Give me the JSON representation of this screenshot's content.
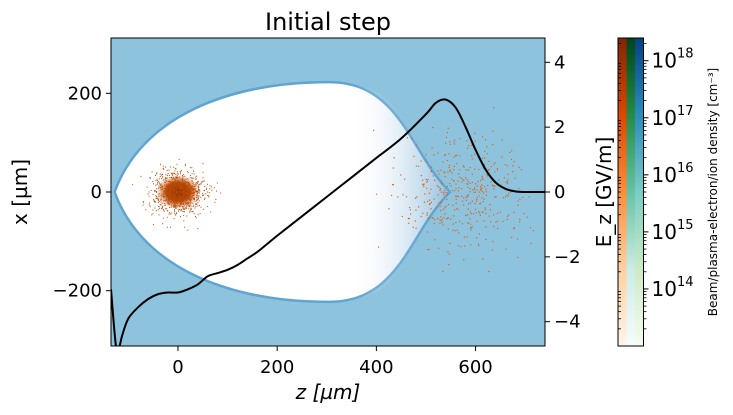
{
  "chart_data": {
    "type": "heatmap",
    "title": "Initial step",
    "xlabel": "z [µm]",
    "ylabel": "x [µm]",
    "y2label": "E_z [GV/m]",
    "xlim": [
      -135,
      740
    ],
    "ylim": [
      -312,
      312
    ],
    "y2lim": [
      -4.75,
      4.75
    ],
    "x_ticks": [
      0,
      200,
      400,
      600
    ],
    "y_ticks": [
      -200,
      0,
      200
    ],
    "y2_ticks": [
      -4,
      -2,
      0,
      2,
      4
    ],
    "x_tick_labels": [
      "0",
      "200",
      "400",
      "600"
    ],
    "y_tick_labels": [
      "−200",
      "0",
      "200"
    ],
    "y2_tick_labels": [
      "−4",
      "−2",
      "0",
      "2",
      "4"
    ],
    "grid": false,
    "background_density_color": "#8ec3de",
    "bubble_color": "#ffffff",
    "sheath_color": "#3a8cc6",
    "bubble": {
      "z_front": -125,
      "z_rear": 545,
      "z_max_radius": 305,
      "max_radius": 220
    },
    "drive_beam": {
      "z_center": 0,
      "x_center": 0,
      "sigma_z": 28,
      "sigma_x": 24,
      "color": "#b84a08"
    },
    "witness_beam": {
      "z_center": 575,
      "x_center": 0,
      "sigma_z": 65,
      "sigma_x": 55,
      "color": "#d9651c"
    },
    "ez_field": {
      "color": "#000000",
      "z": [
        -135,
        -125,
        -118,
        -112,
        -100,
        -80,
        -60,
        -40,
        -20,
        0,
        20,
        40,
        60,
        80,
        100,
        120,
        140,
        160,
        180,
        200,
        250,
        300,
        350,
        400,
        450,
        500,
        520,
        540,
        560,
        580,
        600,
        620,
        640,
        660,
        680,
        700,
        720,
        740
      ],
      "values": [
        -3.0,
        -4.75,
        -4.75,
        -4.4,
        -3.9,
        -3.55,
        -3.3,
        -3.15,
        -3.1,
        -3.1,
        -3.0,
        -2.85,
        -2.6,
        -2.5,
        -2.4,
        -2.25,
        -2.05,
        -1.85,
        -1.6,
        -1.35,
        -0.75,
        -0.15,
        0.45,
        1.05,
        1.65,
        2.4,
        2.75,
        2.85,
        2.6,
        2.0,
        1.3,
        0.7,
        0.3,
        0.1,
        0.02,
        0.0,
        0.0,
        0.0
      ]
    },
    "colorbar": {
      "label": "Beam/plasma-electron/ion density [cm⁻³]",
      "scale": "log",
      "range": [
        10000000000000.0,
        2.5e+18
      ],
      "ticks": [
        100000000000000.0,
        1000000000000000.0,
        1e+16,
        1e+17,
        1e+18
      ],
      "tick_labels": [
        "10",
        "10",
        "10",
        "10",
        "10"
      ],
      "tick_exponents": [
        "14",
        "15",
        "16",
        "17",
        "18"
      ],
      "colormaps": [
        {
          "name": "Oranges",
          "colors": [
            "#fff5eb",
            "#fdd0a2",
            "#fd8d3c",
            "#d94801",
            "#7f2704"
          ]
        },
        {
          "name": "BuGn",
          "colors": [
            "#f7fcfd",
            "#ccece6",
            "#66c2a4",
            "#238b45",
            "#00441b"
          ]
        },
        {
          "name": "GnBu",
          "colors": [
            "#f7fcf0",
            "#ccebc5",
            "#7bccc4",
            "#2b8cbe",
            "#084081"
          ]
        }
      ]
    }
  }
}
